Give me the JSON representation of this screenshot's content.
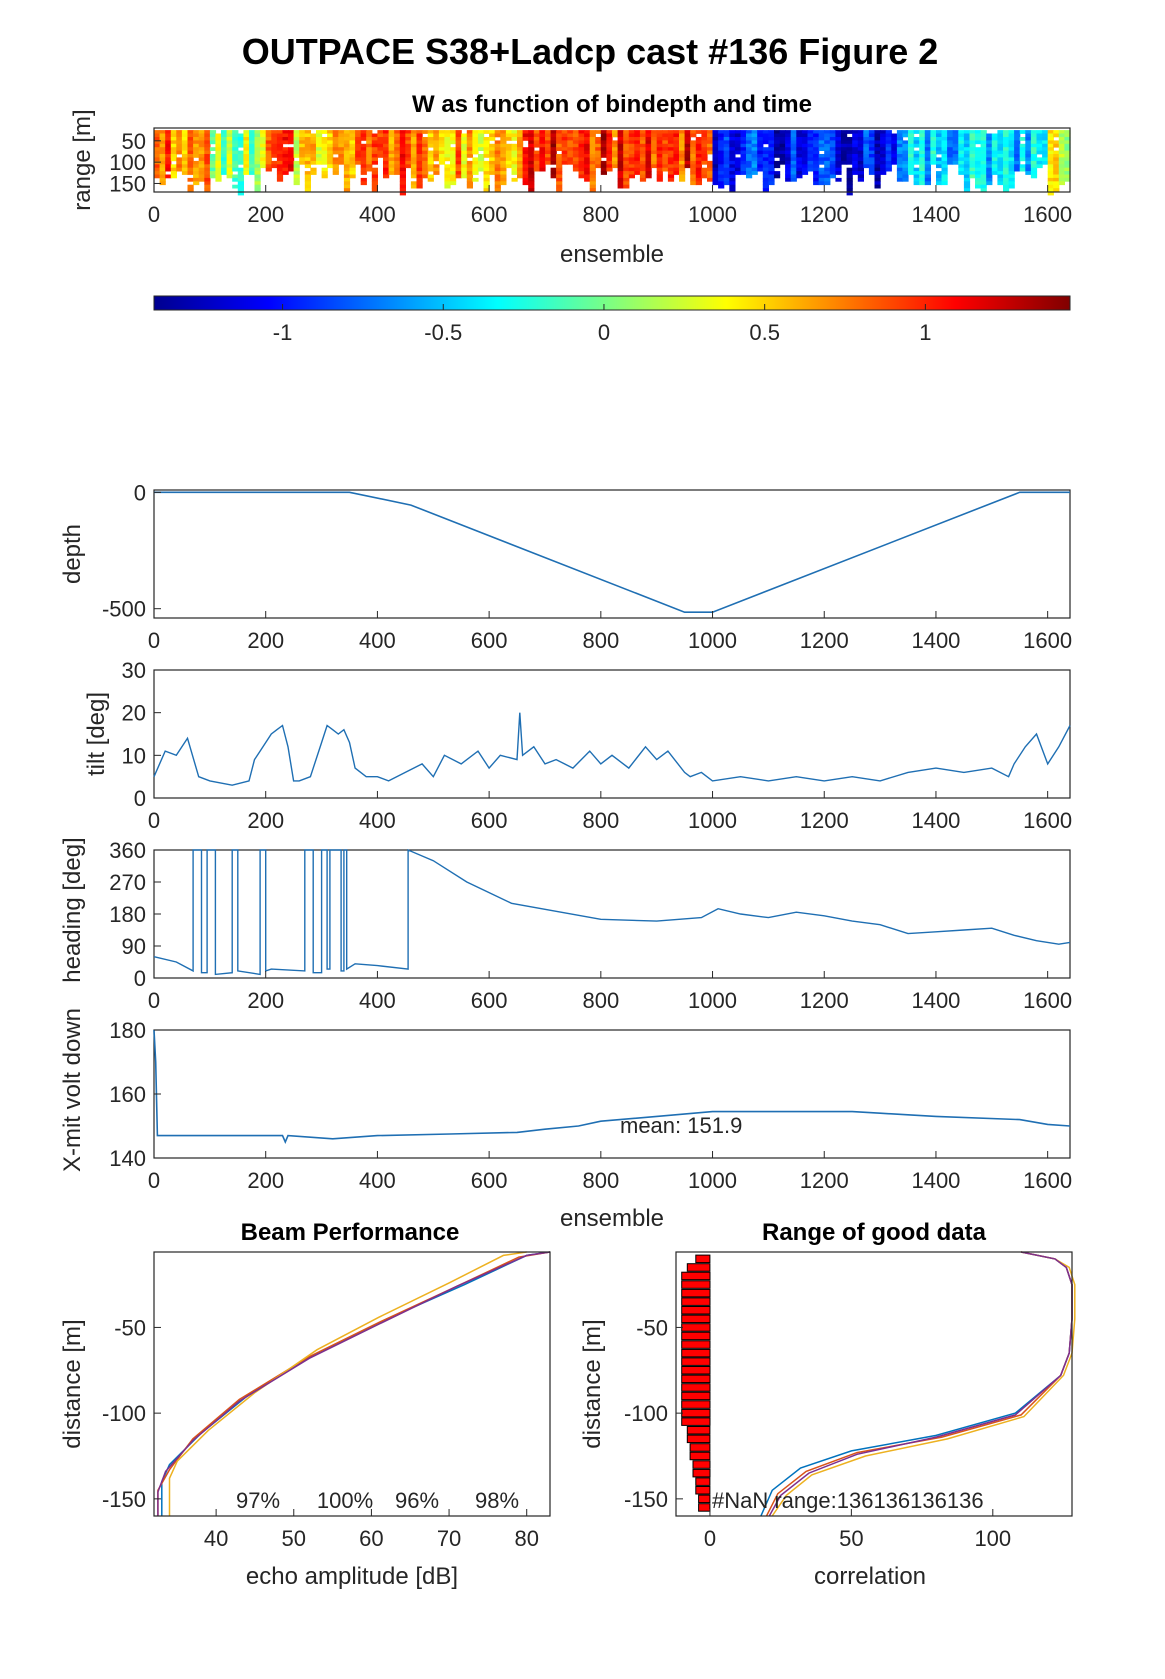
{
  "figure": {
    "title": "OUTPACE S38+Ladcp cast #136 Figure 2"
  },
  "colors": {
    "line": "#1f6fb3",
    "series": [
      "#0072bd",
      "#d95319",
      "#edb120",
      "#7e2f8e"
    ],
    "nan_bar": "#ff0000"
  },
  "chart_data": [
    {
      "id": "w",
      "type": "heatmap",
      "title": "W as function of bindepth and time",
      "xlabel": "ensemble",
      "ylabel": "range [m]",
      "xlim": [
        0,
        1640
      ],
      "ylim": [
        20,
        170
      ],
      "xticks": [
        "0",
        "200",
        "400",
        "600",
        "800",
        "1000",
        "1200",
        "1400",
        "1600"
      ],
      "yticks": [
        "50",
        "100",
        "150"
      ],
      "ensemble_blocks": [
        {
          "start": 0,
          "end": 100,
          "w": 0.8
        },
        {
          "start": 100,
          "end": 200,
          "w": 0.1
        },
        {
          "start": 200,
          "end": 250,
          "w": 1.1
        },
        {
          "start": 250,
          "end": 330,
          "w": 0.5
        },
        {
          "start": 330,
          "end": 450,
          "w": 0.8
        },
        {
          "start": 450,
          "end": 650,
          "w": 0.6
        },
        {
          "start": 650,
          "end": 1000,
          "w": 1.0
        },
        {
          "start": 1000,
          "end": 1350,
          "w": -1.0
        },
        {
          "start": 1350,
          "end": 1600,
          "w": -0.5
        },
        {
          "start": 1600,
          "end": 1640,
          "w": 0.2
        }
      ],
      "colorbar": {
        "min": -1.4,
        "max": 1.45,
        "ticks": [
          "-1",
          "-0.5",
          "0",
          "0.5",
          "1"
        ]
      },
      "grid": false
    },
    {
      "id": "depth",
      "type": "line",
      "xlabel": "",
      "ylabel": "depth",
      "xlim": [
        0,
        1640
      ],
      "ylim": [
        -540,
        10
      ],
      "xticks": [
        "0",
        "200",
        "400",
        "600",
        "800",
        "1000",
        "1200",
        "1400",
        "1600"
      ],
      "yticks": [
        "0",
        "-500"
      ],
      "x": [
        0,
        350,
        460,
        950,
        1000,
        1550,
        1640
      ],
      "y": [
        0,
        0,
        -55,
        -515,
        -515,
        0,
        0
      ],
      "grid": false
    },
    {
      "id": "tilt",
      "type": "line",
      "xlabel": "",
      "ylabel": "tilt [deg]",
      "xlim": [
        0,
        1640
      ],
      "ylim": [
        0,
        30
      ],
      "xticks": [
        "0",
        "200",
        "400",
        "600",
        "800",
        "1000",
        "1200",
        "1400",
        "1600"
      ],
      "yticks": [
        "0",
        "10",
        "20",
        "30"
      ],
      "x": [
        0,
        20,
        40,
        60,
        80,
        100,
        140,
        170,
        180,
        190,
        210,
        220,
        230,
        240,
        250,
        260,
        280,
        300,
        310,
        320,
        330,
        340,
        350,
        360,
        380,
        400,
        420,
        450,
        480,
        500,
        520,
        550,
        580,
        600,
        620,
        650,
        655,
        660,
        680,
        700,
        720,
        750,
        780,
        800,
        820,
        850,
        880,
        900,
        920,
        950,
        960,
        980,
        1000,
        1050,
        1100,
        1150,
        1200,
        1250,
        1300,
        1350,
        1400,
        1450,
        1500,
        1530,
        1540,
        1560,
        1580,
        1600,
        1620,
        1640
      ],
      "y": [
        5,
        11,
        10,
        14,
        5,
        4,
        3,
        4,
        9,
        11,
        15,
        16,
        17,
        12,
        4,
        4,
        5,
        13,
        17,
        16,
        15,
        16,
        13,
        7,
        5,
        5,
        4,
        6,
        8,
        5,
        10,
        8,
        11,
        7,
        10,
        9,
        20,
        10,
        12,
        8,
        9,
        7,
        11,
        8,
        10,
        7,
        12,
        9,
        11,
        6,
        5,
        6,
        4,
        5,
        4,
        5,
        4,
        5,
        4,
        6,
        7,
        6,
        7,
        5,
        8,
        12,
        15,
        8,
        12,
        17
      ],
      "grid": false
    },
    {
      "id": "heading",
      "type": "line",
      "xlabel": "",
      "ylabel": "heading [deg]",
      "xlim": [
        0,
        1640
      ],
      "ylim": [
        0,
        360
      ],
      "xticks": [
        "0",
        "200",
        "400",
        "600",
        "800",
        "1000",
        "1200",
        "1400",
        "1600"
      ],
      "yticks": [
        "0",
        "90",
        "180",
        "270",
        "360"
      ],
      "x": [
        0,
        40,
        70,
        70,
        85,
        85,
        95,
        95,
        110,
        110,
        140,
        140,
        150,
        150,
        190,
        190,
        200,
        200,
        210,
        270,
        270,
        285,
        285,
        300,
        300,
        310,
        310,
        315,
        315,
        335,
        335,
        340,
        340,
        345,
        345,
        360,
        400,
        455,
        455,
        500,
        560,
        640,
        800,
        900,
        980,
        1010,
        1050,
        1100,
        1150,
        1200,
        1250,
        1300,
        1350,
        1400,
        1450,
        1500,
        1540,
        1580,
        1620,
        1640
      ],
      "y": [
        60,
        45,
        20,
        360,
        360,
        15,
        15,
        360,
        360,
        10,
        15,
        360,
        360,
        20,
        10,
        360,
        360,
        20,
        25,
        20,
        360,
        360,
        15,
        15,
        360,
        360,
        25,
        25,
        360,
        360,
        20,
        20,
        360,
        360,
        25,
        40,
        35,
        25,
        360,
        330,
        270,
        210,
        165,
        160,
        170,
        195,
        180,
        170,
        185,
        175,
        160,
        150,
        125,
        130,
        135,
        140,
        120,
        105,
        95,
        100
      ],
      "grid": false
    },
    {
      "id": "xmit",
      "type": "line",
      "xlabel": "ensemble",
      "ylabel": "X-mit volt down",
      "xlim": [
        0,
        1640
      ],
      "ylim": [
        140,
        180
      ],
      "xticks": [
        "0",
        "200",
        "400",
        "600",
        "800",
        "1000",
        "1200",
        "1400",
        "1600"
      ],
      "yticks": [
        "140",
        "160",
        "180"
      ],
      "annotation": "mean: 151.9",
      "x": [
        0,
        3,
        6,
        10,
        230,
        235,
        240,
        320,
        400,
        530,
        650,
        700,
        760,
        800,
        900,
        1000,
        1250,
        1300,
        1350,
        1400,
        1550,
        1600,
        1640
      ],
      "y": [
        180,
        170,
        147,
        147,
        147,
        145,
        147,
        146,
        147,
        147.5,
        148,
        149,
        150,
        151.5,
        153,
        154.5,
        154.5,
        154,
        153.5,
        153,
        152,
        150.5,
        150
      ],
      "grid": false
    },
    {
      "id": "beam",
      "type": "line",
      "title": "Beam Performance",
      "xlabel": "echo amplitude [dB]",
      "ylabel": "distance [m]",
      "xlim": [
        32,
        83
      ],
      "ylim": [
        -160,
        -6
      ],
      "xticks": [
        "40",
        "50",
        "60",
        "70",
        "80"
      ],
      "yticks": [
        "-50",
        "-100",
        "-150"
      ],
      "annotations": [
        "97%",
        "100%",
        "96%",
        "98%"
      ],
      "series": [
        {
          "x": [
            83,
            80,
            72,
            62,
            53,
            44,
            38,
            34,
            33,
            33
          ],
          "y": [
            -6,
            -8,
            -25,
            -45,
            -65,
            -90,
            -112,
            -130,
            -140,
            -160
          ]
        },
        {
          "x": [
            83,
            79,
            71,
            61,
            52,
            43,
            37,
            34,
            32.5,
            32.5
          ],
          "y": [
            -6,
            -9,
            -26,
            -47,
            -67,
            -92,
            -115,
            -133,
            -145,
            -160
          ]
        },
        {
          "x": [
            80,
            77,
            70,
            61,
            53,
            45,
            39,
            35,
            34,
            34
          ],
          "y": [
            -6,
            -8,
            -24,
            -44,
            -63,
            -88,
            -110,
            -128,
            -138,
            -160
          ]
        },
        {
          "x": [
            83,
            80,
            71,
            61,
            52,
            43,
            37,
            33.5,
            32.5,
            32.5
          ],
          "y": [
            -6,
            -8,
            -26,
            -48,
            -68,
            -93,
            -116,
            -134,
            -146,
            -160
          ]
        }
      ],
      "grid": false
    },
    {
      "id": "range",
      "type": "line",
      "title": "Range of good data",
      "xlabel": "correlation",
      "ylabel": "distance [m]",
      "xlim": [
        -12,
        128
      ],
      "ylim": [
        -160,
        -6
      ],
      "xticks": [
        "0",
        "50",
        "100"
      ],
      "yticks": [
        "-50",
        "-100",
        "-150"
      ],
      "annotation": "#NaN range:136136136136",
      "nan_hist": {
        "bins": [
          -10,
          -15,
          -20,
          -25,
          -30,
          -35,
          -40,
          -45,
          -50,
          -55,
          -60,
          -65,
          -70,
          -75,
          -80,
          -85,
          -90,
          -95,
          -100,
          -105,
          -110,
          -115,
          -120,
          -125,
          -130,
          -135,
          -140,
          -145,
          -150,
          -155
        ],
        "values": [
          -5,
          -8,
          -10,
          -10,
          -10,
          -10,
          -10,
          -10,
          -10,
          -10,
          -10,
          -10,
          -10,
          -10,
          -10,
          -10,
          -10,
          -10,
          -10,
          -10,
          -8,
          -8,
          -7,
          -7,
          -6,
          -6,
          -5,
          -5,
          -4,
          -4
        ]
      },
      "series": [
        {
          "x": [
            110,
            122,
            126,
            128,
            128,
            127,
            124,
            108,
            80,
            50,
            32,
            22,
            18
          ],
          "y": [
            -6,
            -10,
            -15,
            -25,
            -45,
            -65,
            -78,
            -100,
            -113,
            -122,
            -132,
            -145,
            -160
          ]
        },
        {
          "x": [
            110,
            122,
            126,
            128,
            128,
            127,
            124,
            110,
            82,
            52,
            34,
            24,
            20
          ],
          "y": [
            -6,
            -10,
            -15,
            -25,
            -45,
            -65,
            -78,
            -101,
            -114,
            -123,
            -134,
            -147,
            -160
          ]
        },
        {
          "x": [
            110,
            122,
            127,
            129,
            129,
            128,
            125,
            111,
            84,
            55,
            36,
            27,
            22
          ],
          "y": [
            -6,
            -10,
            -15,
            -25,
            -45,
            -65,
            -78,
            -102,
            -115,
            -125,
            -136,
            -148,
            -160
          ]
        },
        {
          "x": [
            110,
            122,
            126,
            128,
            128,
            127,
            124,
            108,
            80,
            52,
            35,
            25,
            21
          ],
          "y": [
            -6,
            -10,
            -15,
            -25,
            -45,
            -65,
            -78,
            -101,
            -114,
            -124,
            -135,
            -148,
            -160
          ]
        }
      ],
      "grid": false
    }
  ]
}
